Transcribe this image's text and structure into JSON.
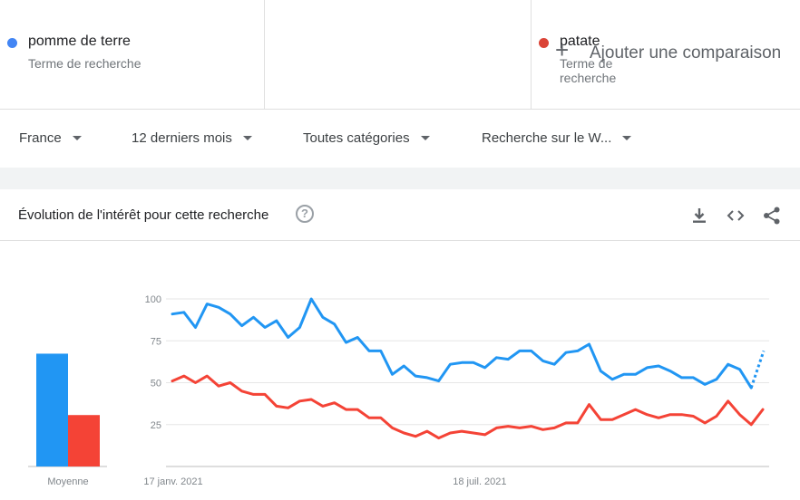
{
  "terms": [
    {
      "name": "pomme de terre",
      "type": "Terme de recherche",
      "color": "#4285f4"
    },
    {
      "name": "patate",
      "type": "Terme de recherche",
      "color": "#db4437"
    }
  ],
  "add_comparison": {
    "plus": "+",
    "label": "Ajouter une comparaison"
  },
  "filters": {
    "region": "France",
    "period": "12 derniers mois",
    "category": "Toutes catégories",
    "search_type": "Recherche sur le W..."
  },
  "card": {
    "title": "Évolution de l'intérêt pour cette recherche",
    "help": "?",
    "tools": [
      "download-icon",
      "embed-code-icon",
      "share-icon"
    ]
  },
  "chart_data": {
    "type": "line",
    "x_tick_labels": [
      "17 janv. 2021",
      "18 juil. 2021"
    ],
    "y_ticks": [
      25,
      50,
      75,
      100
    ],
    "ylim": [
      0,
      100
    ],
    "grid": true,
    "series": [
      {
        "name": "pomme de terre",
        "color": "#2196f3",
        "partial_last_value": 69,
        "values": [
          91,
          92,
          83,
          97,
          95,
          91,
          84,
          89,
          83,
          87,
          77,
          83,
          100,
          89,
          85,
          74,
          77,
          69,
          69,
          55,
          60,
          54,
          53,
          51,
          61,
          62,
          62,
          59,
          65,
          64,
          69,
          69,
          63,
          61,
          68,
          69,
          73,
          57,
          52,
          55,
          55,
          59,
          60,
          57,
          53,
          53,
          49,
          52,
          61,
          58,
          47
        ]
      },
      {
        "name": "patate",
        "color": "#f44336",
        "values": [
          51,
          54,
          50,
          54,
          48,
          50,
          45,
          43,
          43,
          36,
          35,
          39,
          40,
          36,
          38,
          34,
          34,
          29,
          29,
          23,
          20,
          18,
          21,
          17,
          20,
          21,
          20,
          19,
          23,
          24,
          23,
          24,
          22,
          23,
          26,
          26,
          37,
          28,
          28,
          31,
          34,
          31,
          29,
          31,
          31,
          30,
          26,
          30,
          39,
          31,
          25,
          34
        ]
      }
    ],
    "average_label": "Moyenne",
    "averages": [
      {
        "name": "pomme de terre",
        "value": 68,
        "color": "#2196f3"
      },
      {
        "name": "patate",
        "value": 31,
        "color": "#f44336"
      }
    ]
  }
}
